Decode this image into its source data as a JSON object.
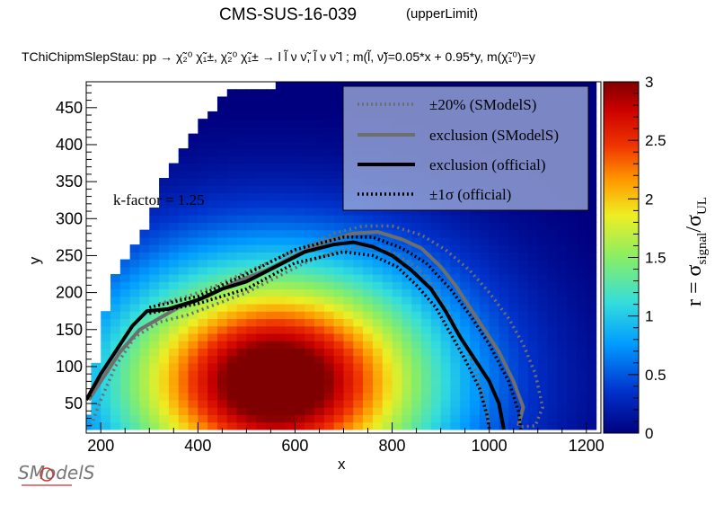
{
  "header": {
    "title": "CMS-SUS-16-039",
    "title_suffix": "(upperLimit)",
    "subtitle": "TChiChipmSlepStau: pp  → χ̃₂⁰ χ̃₁±, χ̃₂⁰ χ̃₁±  → l l̃ ν  ν̃, l̃ ν  ν̃ l ; m(l̃, ν̃)=0.05*x + 0.95*y, m(χ̃₁⁰)=y"
  },
  "annotation": {
    "kfactor": "k-factor = 1.25"
  },
  "legend": {
    "items": [
      {
        "label": "±20% (SModelS)",
        "style": "dotted",
        "color": "#6e6e6e"
      },
      {
        "label": "exclusion (SModelS)",
        "style": "solid",
        "color": "#6e6e6e"
      },
      {
        "label": "exclusion (official)",
        "style": "solid",
        "color": "#000000"
      },
      {
        "label": "±1σ (official)",
        "style": "dotted",
        "color": "#000000"
      }
    ]
  },
  "colorbar": {
    "label_main": "r = σ",
    "label_sub1": "signal",
    "label_slash": "/σ",
    "label_sub2": "UL",
    "range": [
      0,
      3
    ],
    "ticks": [
      "0",
      "0.5",
      "1",
      "1.5",
      "2",
      "2.5",
      "3"
    ]
  },
  "logo": {
    "text": "SModelS"
  },
  "chart_data": {
    "type": "heatmap",
    "xlabel": "x",
    "ylabel": "y",
    "xlim": [
      170,
      1230
    ],
    "ylim": [
      10,
      485
    ],
    "xticks": [
      200,
      400,
      600,
      800,
      1000,
      1200
    ],
    "yticks": [
      50,
      100,
      150,
      200,
      250,
      300,
      350,
      400,
      450
    ],
    "cell": {
      "dx": 20,
      "dy": 10
    },
    "z_range": [
      0,
      3
    ],
    "colormap": "rainbow",
    "grid": false,
    "legend_position": "top-right",
    "max_y_per_x": [
      [
        170,
        30
      ],
      [
        220,
        210
      ],
      [
        300,
        300
      ],
      [
        340,
        370
      ],
      [
        380,
        400
      ],
      [
        420,
        440
      ],
      [
        460,
        470
      ],
      [
        560,
        480
      ],
      [
        1220,
        480
      ]
    ],
    "r_peak": {
      "x": 560,
      "y": 80,
      "r_x": 430,
      "r_y": 200
    },
    "curves": {
      "official_exclusion": [
        [
          170,
          55
        ],
        [
          200,
          90
        ],
        [
          230,
          120
        ],
        [
          265,
          155
        ],
        [
          295,
          175
        ],
        [
          340,
          178
        ],
        [
          400,
          190
        ],
        [
          450,
          205
        ],
        [
          500,
          215
        ],
        [
          560,
          235
        ],
        [
          620,
          255
        ],
        [
          680,
          265
        ],
        [
          720,
          268
        ],
        [
          760,
          262
        ],
        [
          800,
          250
        ],
        [
          840,
          230
        ],
        [
          880,
          205
        ],
        [
          910,
          175
        ],
        [
          940,
          140
        ],
        [
          970,
          110
        ],
        [
          1000,
          80
        ],
        [
          1020,
          50
        ],
        [
          1030,
          15
        ]
      ],
      "official_plus1s": [
        [
          300,
          180
        ],
        [
          400,
          195
        ],
        [
          500,
          225
        ],
        [
          600,
          258
        ],
        [
          700,
          275
        ],
        [
          760,
          275
        ],
        [
          820,
          260
        ],
        [
          870,
          240
        ],
        [
          920,
          205
        ],
        [
          960,
          170
        ],
        [
          1000,
          130
        ],
        [
          1040,
          80
        ],
        [
          1060,
          40
        ],
        [
          1065,
          15
        ]
      ],
      "official_minus1s": [
        [
          300,
          172
        ],
        [
          400,
          185
        ],
        [
          500,
          205
        ],
        [
          600,
          240
        ],
        [
          700,
          255
        ],
        [
          760,
          250
        ],
        [
          810,
          235
        ],
        [
          850,
          210
        ],
        [
          890,
          180
        ],
        [
          920,
          145
        ],
        [
          950,
          110
        ],
        [
          980,
          70
        ],
        [
          995,
          35
        ],
        [
          1000,
          15
        ]
      ],
      "smodels_exclusion": [
        [
          175,
          55
        ],
        [
          200,
          80
        ],
        [
          240,
          120
        ],
        [
          280,
          150
        ],
        [
          320,
          165
        ],
        [
          360,
          180
        ],
        [
          420,
          195
        ],
        [
          480,
          215
        ],
        [
          540,
          230
        ],
        [
          600,
          250
        ],
        [
          660,
          268
        ],
        [
          720,
          280
        ],
        [
          770,
          282
        ],
        [
          820,
          272
        ],
        [
          860,
          260
        ],
        [
          900,
          235
        ],
        [
          930,
          210
        ],
        [
          960,
          180
        ],
        [
          990,
          150
        ],
        [
          1020,
          120
        ],
        [
          1050,
          80
        ],
        [
          1070,
          45
        ],
        [
          1060,
          20
        ]
      ],
      "smodels_plus20": [
        [
          320,
          185
        ],
        [
          380,
          195
        ],
        [
          440,
          210
        ],
        [
          500,
          228
        ],
        [
          560,
          245
        ],
        [
          620,
          262
        ],
        [
          680,
          280
        ],
        [
          740,
          290
        ],
        [
          800,
          290
        ],
        [
          860,
          278
        ],
        [
          910,
          258
        ],
        [
          960,
          230
        ],
        [
          1000,
          200
        ],
        [
          1040,
          165
        ],
        [
          1070,
          130
        ],
        [
          1095,
          90
        ],
        [
          1110,
          45
        ],
        [
          1095,
          20
        ],
        [
          1060,
          18
        ]
      ],
      "smodels_minus20": [
        [
          180,
          20
        ],
        [
          200,
          55
        ],
        [
          230,
          100
        ],
        [
          270,
          140
        ],
        [
          320,
          160
        ],
        [
          380,
          170
        ],
        [
          440,
          185
        ],
        [
          500,
          200
        ],
        [
          560,
          220
        ],
        [
          620,
          240
        ],
        [
          680,
          255
        ],
        [
          740,
          262
        ],
        [
          800,
          255
        ],
        [
          850,
          235
        ],
        [
          890,
          205
        ],
        [
          920,
          170
        ],
        [
          950,
          130
        ],
        [
          975,
          90
        ],
        [
          990,
          55
        ],
        [
          1000,
          20
        ]
      ]
    }
  }
}
